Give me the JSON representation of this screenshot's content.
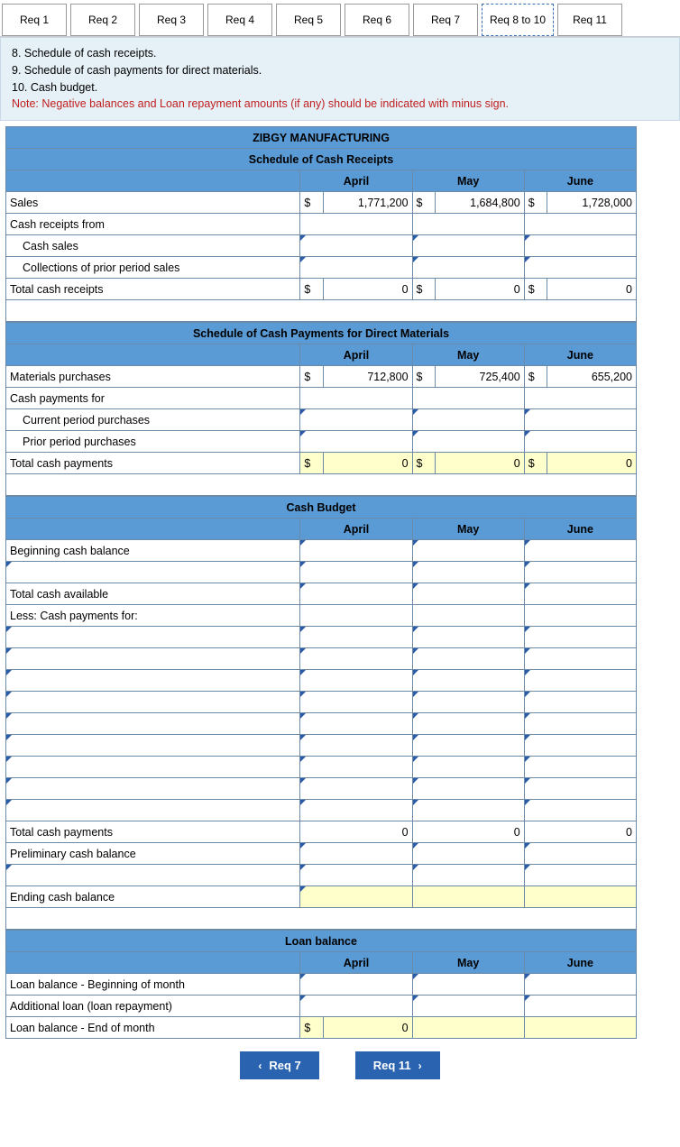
{
  "tabs": [
    {
      "label": "Req 1"
    },
    {
      "label": "Req 2"
    },
    {
      "label": "Req 3"
    },
    {
      "label": "Req 4"
    },
    {
      "label": "Req 5"
    },
    {
      "label": "Req 6"
    },
    {
      "label": "Req 7"
    },
    {
      "label": "Req 8 to 10",
      "active": true
    },
    {
      "label": "Req 11"
    }
  ],
  "instructions": {
    "line1": "8. Schedule of cash receipts.",
    "line2": "9. Schedule of cash payments for direct materials.",
    "line3": "10. Cash budget.",
    "note": "Note: Negative balances and Loan repayment amounts (if any) should be indicated with minus sign."
  },
  "colors": {
    "header_bg": "#5a9bd5",
    "border": "#6a8aa8",
    "highlight": "#ffffcc",
    "info_bg": "#e6f0f7",
    "nav_btn": "#2a63b0",
    "note_text": "#c02020",
    "marker": "#2a5ca8"
  },
  "receipts": {
    "title": "ZIBGY MANUFACTURING",
    "subtitle": "Schedule of Cash Receipts",
    "months": {
      "m1": "April",
      "m2": "May",
      "m3": "June"
    },
    "rows": {
      "sales": {
        "label": "Sales",
        "apr_cur": "$",
        "apr": "1,771,200",
        "may_cur": "$",
        "may": "1,684,800",
        "jun_cur": "$",
        "jun": "1,728,000"
      },
      "from": {
        "label": "Cash receipts from"
      },
      "cash_sales": {
        "label": "Cash sales"
      },
      "collections": {
        "label": "Collections of prior period sales"
      },
      "total": {
        "label": "Total cash receipts",
        "apr_cur": "$",
        "apr": "0",
        "may_cur": "$",
        "may": "0",
        "jun_cur": "$",
        "jun": "0"
      }
    }
  },
  "payments": {
    "title": "Schedule of Cash Payments for Direct Materials",
    "months": {
      "m1": "April",
      "m2": "May",
      "m3": "June"
    },
    "rows": {
      "purchases": {
        "label": "Materials purchases",
        "apr_cur": "$",
        "apr": "712,800",
        "may_cur": "$",
        "may": "725,400",
        "jun_cur": "$",
        "jun": "655,200"
      },
      "for": {
        "label": "Cash payments for"
      },
      "current": {
        "label": "Current period purchases"
      },
      "prior": {
        "label": "Prior period purchases"
      },
      "total": {
        "label": "Total cash payments",
        "apr_cur": "$",
        "apr": "0",
        "may_cur": "$",
        "may": "0",
        "jun_cur": "$",
        "jun": "0"
      }
    }
  },
  "budget": {
    "title": "Cash Budget",
    "months": {
      "m1": "April",
      "m2": "May",
      "m3": "June"
    },
    "rows": {
      "begin": {
        "label": "Beginning cash balance"
      },
      "avail": {
        "label": "Total cash available"
      },
      "less": {
        "label": "Less: Cash payments for:"
      },
      "total_pay": {
        "label": "Total cash payments",
        "apr": "0",
        "may": "0",
        "jun": "0"
      },
      "prelim": {
        "label": "Preliminary cash balance"
      },
      "ending": {
        "label": "Ending cash balance"
      }
    }
  },
  "loan": {
    "title": "Loan balance",
    "months": {
      "m1": "April",
      "m2": "May",
      "m3": "June"
    },
    "rows": {
      "begin": {
        "label": "Loan balance - Beginning of month"
      },
      "add": {
        "label": "Additional loan (loan repayment)"
      },
      "end": {
        "label": "Loan balance - End of month",
        "apr_cur": "$",
        "apr": "0"
      }
    }
  },
  "nav": {
    "prev": "Req 7",
    "next": "Req 11"
  }
}
